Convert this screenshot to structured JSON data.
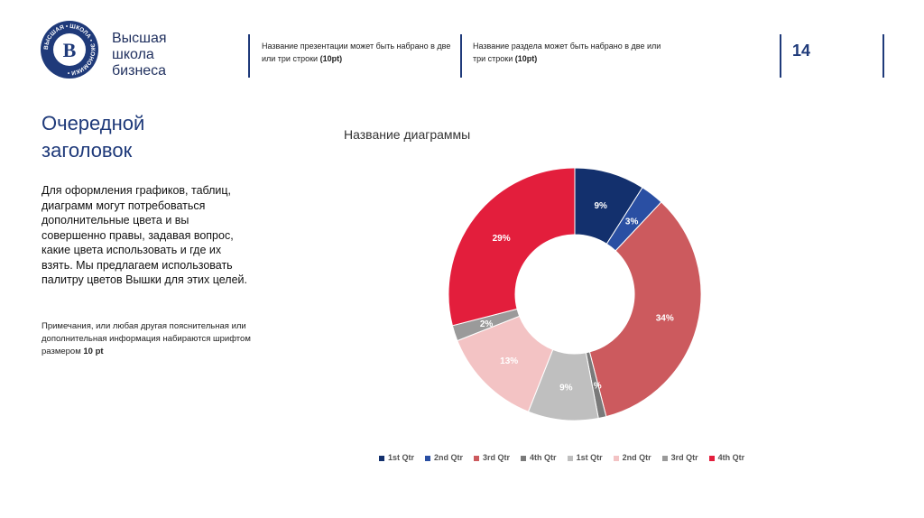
{
  "logo": {
    "emblem_letter": "В",
    "ring_text": "ВЫСШАЯ • ШКОЛА • ЭКОНОМИКИ •",
    "lines": [
      "Высшая",
      "школа",
      "бизнеса"
    ],
    "color": "#1f3a7a"
  },
  "header": {
    "presentation_name": "Название презентации может быть набрано в две или три строки",
    "presentation_suffix": "(10pt)",
    "section_name": "Название раздела может быть набрано в две или три строки",
    "section_suffix": "(10pt)",
    "page_number": "14"
  },
  "slide": {
    "title_line1": "Очередной",
    "title_line2": "заголовок",
    "body": "Для оформления графиков, таблиц, диаграмм могут потребоваться дополнительные цвета и вы совершенно правы, задавая вопрос, какие цвета использовать и где их взять. Мы предлагаем использовать палитру цветов Вышки для этих целей.",
    "note": "Примечания, или любая другая пояснительная или дополнительная информация набираются шрифтом размером",
    "note_suffix": "10 pt"
  },
  "chart_data": {
    "type": "pie",
    "title": "Название диаграммы",
    "donut": true,
    "legend_position": "bottom",
    "categories": [
      "1st Qtr",
      "2nd Qtr",
      "3rd Qtr",
      "4th Qtr",
      "1st Qtr",
      "2nd Qtr",
      "3rd Qtr",
      "4th Qtr"
    ],
    "values": [
      9,
      3,
      34,
      1,
      9,
      13,
      2,
      29
    ],
    "labels": [
      "9%",
      "3%",
      "34%",
      "1%",
      "9%",
      "13%",
      "2%",
      "29%"
    ],
    "colors": [
      "#13306d",
      "#2a4fa3",
      "#cc5a5e",
      "#7a7a7a",
      "#bfbfbf",
      "#f3c3c4",
      "#9a9a9a",
      "#e31e3c"
    ],
    "label_colors": [
      "#ffffff",
      "#ffffff",
      "#ffffff",
      "#ffffff",
      "#ffffff",
      "#ffffff",
      "#ffffff",
      "#ffffff"
    ]
  }
}
